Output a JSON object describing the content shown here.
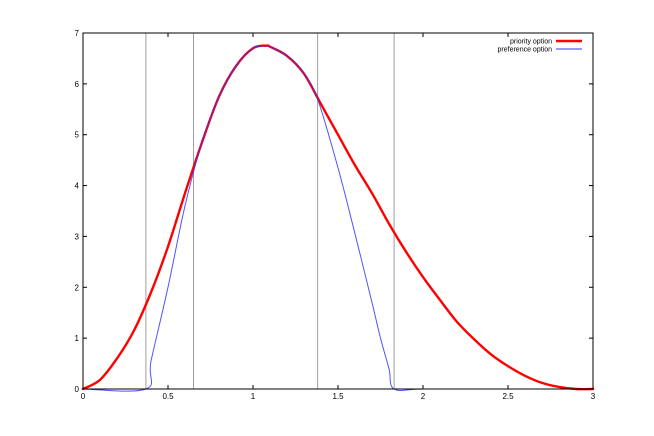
{
  "chart_data": {
    "type": "line",
    "title": "",
    "xlabel": "",
    "ylabel": "",
    "xlim": [
      0,
      3
    ],
    "ylim": [
      0,
      7
    ],
    "x_ticks": [
      0,
      0.5,
      1,
      1.5,
      2,
      2.5,
      3
    ],
    "x_tick_labels": [
      "0",
      "0.5",
      "1",
      "1.5",
      "2",
      "2.5",
      "3"
    ],
    "y_ticks": [
      0,
      1,
      2,
      3,
      4,
      5,
      6,
      7
    ],
    "y_tick_labels": [
      "0",
      "1",
      "2",
      "3",
      "4",
      "5",
      "6",
      "7"
    ],
    "grid": false,
    "legend_position": "top-right",
    "vertical_lines": [
      0.37,
      0.65,
      1.38,
      1.83
    ],
    "vertical_line_color": "#a0a0a0",
    "series": [
      {
        "name": "priority option",
        "color": "#ff0000",
        "x": [
          0.0,
          0.1,
          0.2,
          0.3,
          0.4,
          0.5,
          0.6,
          0.7,
          0.8,
          0.9,
          1.0,
          1.08,
          1.1,
          1.2,
          1.3,
          1.4,
          1.5,
          1.6,
          1.7,
          1.8,
          1.9,
          2.0,
          2.1,
          2.2,
          2.3,
          2.4,
          2.5,
          2.6,
          2.7,
          2.8,
          2.9,
          3.0
        ],
        "y": [
          0.0,
          0.18,
          0.6,
          1.15,
          1.9,
          2.8,
          3.85,
          4.85,
          5.75,
          6.35,
          6.7,
          6.75,
          6.73,
          6.55,
          6.2,
          5.6,
          5.0,
          4.4,
          3.85,
          3.25,
          2.7,
          2.2,
          1.75,
          1.32,
          0.98,
          0.68,
          0.45,
          0.26,
          0.12,
          0.04,
          0.0,
          0.0
        ]
      },
      {
        "name": "preference option",
        "color": "#3333ff",
        "x": [
          0.0,
          0.37,
          0.4,
          0.5,
          0.6,
          0.7,
          0.8,
          0.9,
          1.0,
          1.08,
          1.1,
          1.2,
          1.3,
          1.38,
          1.5,
          1.6,
          1.7,
          1.75,
          1.8,
          1.83,
          2.0,
          2.5,
          3.0
        ],
        "y": [
          0.0,
          0.0,
          0.55,
          2.0,
          3.6,
          4.85,
          5.75,
          6.35,
          6.7,
          6.75,
          6.73,
          6.55,
          6.2,
          5.7,
          4.35,
          3.05,
          1.7,
          1.0,
          0.4,
          0.0,
          0.0,
          0.0,
          0.0
        ]
      }
    ]
  }
}
